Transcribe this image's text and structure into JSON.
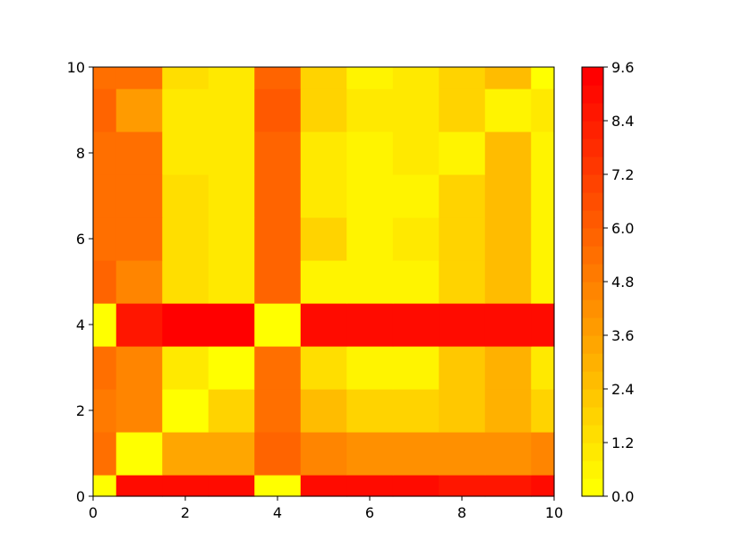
{
  "chart_data": {
    "type": "heatmap",
    "title": "",
    "xlabel": "",
    "ylabel": "",
    "xlim": [
      0,
      10
    ],
    "ylim": [
      0,
      10
    ],
    "grid": false,
    "x_ticks": [
      "0",
      "2",
      "4",
      "6",
      "8",
      "10"
    ],
    "y_ticks": [
      "0",
      "2",
      "4",
      "6",
      "8",
      "10"
    ],
    "x_tick_values": [
      0,
      2,
      4,
      6,
      8,
      10
    ],
    "y_tick_values": [
      0,
      2,
      4,
      6,
      8,
      10
    ],
    "x_edges": [
      0,
      0.5,
      1.5,
      2.5,
      3.5,
      4.5,
      5.5,
      6.5,
      7.5,
      8.5,
      9.5,
      10
    ],
    "y_edges": [
      0,
      0.5,
      1.5,
      2.5,
      3.5,
      4.5,
      5.5,
      6.5,
      7.5,
      8.5,
      9.5,
      10
    ],
    "values": [
      [
        0.3,
        8.9,
        8.9,
        8.9,
        0.3,
        8.9,
        8.9,
        8.9,
        8.7,
        8.7,
        9.1
      ],
      [
        5.5,
        0.3,
        3.4,
        3.4,
        5.9,
        4.4,
        4.0,
        4.0,
        4.0,
        4.2,
        4.4
      ],
      [
        4.8,
        4.4,
        0.3,
        1.7,
        5.3,
        2.6,
        1.7,
        1.7,
        2.0,
        2.8,
        1.6
      ],
      [
        5.3,
        4.6,
        1.0,
        0.3,
        5.5,
        1.3,
        0.5,
        0.5,
        2.0,
        2.8,
        0.8
      ],
      [
        0.3,
        8.6,
        9.2,
        9.2,
        0.3,
        9.0,
        9.0,
        9.0,
        8.8,
        8.8,
        9.1
      ],
      [
        5.6,
        4.6,
        1.5,
        1.0,
        5.9,
        0.4,
        0.4,
        0.4,
        1.6,
        2.5,
        0.6
      ],
      [
        5.4,
        5.4,
        1.5,
        1.0,
        5.6,
        1.7,
        0.4,
        0.9,
        1.8,
        2.5,
        0.7
      ],
      [
        5.4,
        5.4,
        1.5,
        1.0,
        5.6,
        0.8,
        0.4,
        0.4,
        1.8,
        2.5,
        0.7
      ],
      [
        5.4,
        5.4,
        0.8,
        0.8,
        5.6,
        0.8,
        0.4,
        0.9,
        0.4,
        2.5,
        0.7
      ],
      [
        5.7,
        3.6,
        0.8,
        0.8,
        6.2,
        1.7,
        1.1,
        1.1,
        1.9,
        0.4,
        0.8
      ],
      [
        5.4,
        5.4,
        1.5,
        1.0,
        5.6,
        1.7,
        0.4,
        0.9,
        1.8,
        2.5,
        0.3
      ]
    ],
    "colorbar": {
      "min": 0,
      "max": 9.6,
      "levels": 24,
      "ticks": [
        "0.0",
        "1.2",
        "2.4",
        "3.6",
        "4.8",
        "6.0",
        "7.2",
        "8.4",
        "9.6"
      ],
      "tick_values": [
        0,
        1.2,
        2.4,
        3.6,
        4.8,
        6.0,
        7.2,
        8.4,
        9.6
      ]
    },
    "colormap": {
      "low": "#ffff00",
      "high": "#ff0000",
      "name": "autumn_r"
    }
  }
}
